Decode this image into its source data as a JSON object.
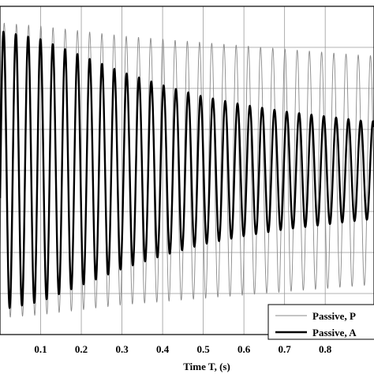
{
  "chart_data": {
    "type": "line",
    "xlabel": "Time T, (s)",
    "ylabel": "",
    "xlim": [
      0.0,
      0.92
    ],
    "ylim": [
      -1.0,
      1.0
    ],
    "xticks": [
      "0.1",
      "0.2",
      "0.3",
      "0.4",
      "0.5",
      "0.6",
      "0.7",
      "0.8"
    ],
    "grid": true,
    "legend_position": "bottom-right",
    "series": [
      {
        "name": "Passive, P",
        "style": "thin-gray",
        "color": "#8a8a8a",
        "frequency_hz": 33.3,
        "x": [
          0.0,
          0.1,
          0.2,
          0.3,
          0.4,
          0.5,
          0.6,
          0.7,
          0.8,
          0.9
        ],
        "amplitude": [
          0.9,
          0.88,
          0.85,
          0.82,
          0.8,
          0.78,
          0.76,
          0.74,
          0.72,
          0.7
        ]
      },
      {
        "name": "Passive, A",
        "style": "thick-black",
        "color": "#000000",
        "frequency_hz": 33.0,
        "x": [
          0.0,
          0.1,
          0.2,
          0.3,
          0.4,
          0.5,
          0.6,
          0.7,
          0.8,
          0.9
        ],
        "amplitude": [
          0.85,
          0.8,
          0.7,
          0.6,
          0.52,
          0.45,
          0.4,
          0.36,
          0.33,
          0.3
        ]
      }
    ]
  }
}
